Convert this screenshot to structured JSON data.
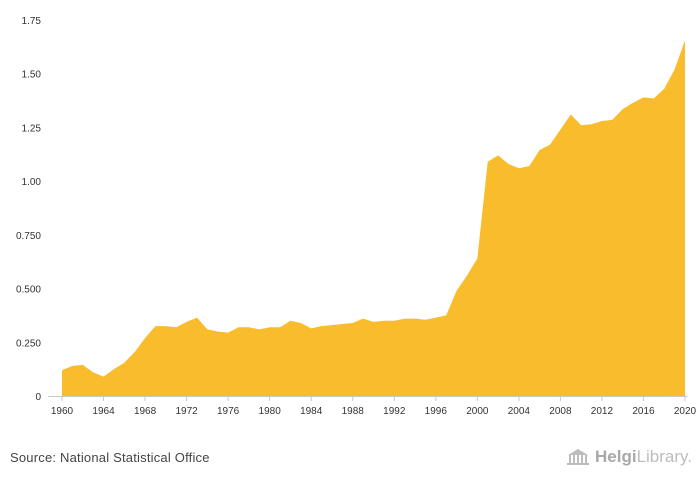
{
  "chart_data": {
    "type": "area",
    "title": "",
    "xlabel": "",
    "ylabel": "",
    "color": "#F9BC2C",
    "grid": false,
    "ylim": [
      0,
      1.75
    ],
    "xlim": [
      1960,
      2020
    ],
    "y_ticks": [
      "0",
      "0.250",
      "0.500",
      "0.750",
      "1.00",
      "1.25",
      "1.50",
      "1.75"
    ],
    "y_tick_values": [
      0,
      0.25,
      0.5,
      0.75,
      1.0,
      1.25,
      1.5,
      1.75
    ],
    "x_ticks": [
      "1960",
      "1964",
      "1968",
      "1972",
      "1976",
      "1980",
      "1984",
      "1988",
      "1992",
      "1996",
      "2000",
      "2004",
      "2008",
      "2012",
      "2016",
      "2020"
    ],
    "x": [
      1960,
      1961,
      1962,
      1963,
      1964,
      1965,
      1966,
      1967,
      1968,
      1969,
      1970,
      1971,
      1972,
      1973,
      1974,
      1975,
      1976,
      1977,
      1978,
      1979,
      1980,
      1981,
      1982,
      1983,
      1984,
      1985,
      1986,
      1987,
      1988,
      1989,
      1990,
      1991,
      1992,
      1993,
      1994,
      1995,
      1996,
      1997,
      1998,
      1999,
      2000,
      2001,
      2002,
      2003,
      2004,
      2005,
      2006,
      2007,
      2008,
      2009,
      2010,
      2011,
      2012,
      2013,
      2014,
      2015,
      2016,
      2017,
      2018,
      2019,
      2020
    ],
    "values": [
      0.12,
      0.14,
      0.145,
      0.11,
      0.09,
      0.125,
      0.155,
      0.205,
      0.27,
      0.325,
      0.325,
      0.32,
      0.345,
      0.365,
      0.31,
      0.3,
      0.295,
      0.32,
      0.32,
      0.31,
      0.32,
      0.32,
      0.35,
      0.34,
      0.315,
      0.325,
      0.33,
      0.335,
      0.34,
      0.36,
      0.345,
      0.35,
      0.35,
      0.36,
      0.36,
      0.355,
      0.365,
      0.375,
      0.49,
      0.56,
      0.64,
      1.09,
      1.12,
      1.08,
      1.06,
      1.07,
      1.145,
      1.17,
      1.24,
      1.31,
      1.26,
      1.265,
      1.28,
      1.285,
      1.335,
      1.365,
      1.39,
      1.385,
      1.43,
      1.52,
      1.655
    ]
  },
  "footer": {
    "source": "Source: National Statistical Office",
    "brand_bold": "Helgi",
    "brand_light": "Library."
  }
}
